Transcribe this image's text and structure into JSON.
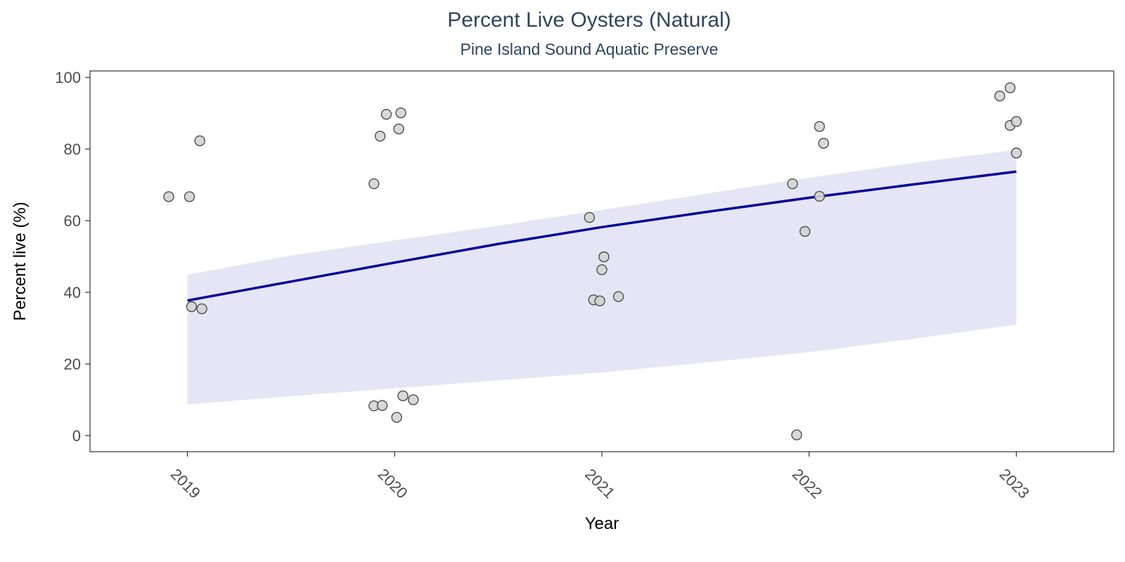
{
  "chart_data": {
    "type": "scatter",
    "title": "Percent Live Oysters (Natural)",
    "subtitle": "Pine Island Sound Aquatic Preserve",
    "xlabel": "Year",
    "ylabel": "Percent live (%)",
    "xlim": [
      2018.53,
      2023.47
    ],
    "ylim": [
      -4.5,
      101.8
    ],
    "x_ticks": [
      2019,
      2020,
      2021,
      2022,
      2023
    ],
    "y_ticks": [
      0,
      20,
      40,
      60,
      80,
      100
    ],
    "grid": false,
    "legend": "none",
    "colors": {
      "point_fill": "#d4d4d4",
      "point_fill_overlap": "#c9c8d9",
      "point_stroke": "#4d4d4d",
      "trend_line": "#000099",
      "confidence_band": "#e5e5f5",
      "panel_border": "#333333"
    },
    "points": [
      {
        "x": 2018.91,
        "y": 66.7
      },
      {
        "x": 2019.01,
        "y": 66.7
      },
      {
        "x": 2019.06,
        "y": 82.3
      },
      {
        "x": 2019.02,
        "y": 36.0
      },
      {
        "x": 2019.07,
        "y": 35.4
      },
      {
        "x": 2019.9,
        "y": 70.3
      },
      {
        "x": 2019.93,
        "y": 83.6
      },
      {
        "x": 2019.96,
        "y": 89.7
      },
      {
        "x": 2020.02,
        "y": 85.6
      },
      {
        "x": 2020.03,
        "y": 90.1
      },
      {
        "x": 2019.9,
        "y": 8.3
      },
      {
        "x": 2019.94,
        "y": 8.4
      },
      {
        "x": 2020.01,
        "y": 5.1
      },
      {
        "x": 2020.04,
        "y": 11.1
      },
      {
        "x": 2020.09,
        "y": 10.0
      },
      {
        "x": 2020.94,
        "y": 60.9
      },
      {
        "x": 2021.01,
        "y": 49.9
      },
      {
        "x": 2021.0,
        "y": 46.3
      },
      {
        "x": 2020.96,
        "y": 37.9
      },
      {
        "x": 2020.99,
        "y": 37.6
      },
      {
        "x": 2021.08,
        "y": 38.8
      },
      {
        "x": 2021.92,
        "y": 70.3
      },
      {
        "x": 2021.98,
        "y": 57.0
      },
      {
        "x": 2021.94,
        "y": 0.2
      },
      {
        "x": 2022.05,
        "y": 66.8
      },
      {
        "x": 2022.05,
        "y": 86.3
      },
      {
        "x": 2022.07,
        "y": 81.6
      },
      {
        "x": 2022.92,
        "y": 94.8
      },
      {
        "x": 2022.97,
        "y": 97.1
      },
      {
        "x": 2022.97,
        "y": 86.6
      },
      {
        "x": 2023.0,
        "y": 87.7
      },
      {
        "x": 2023.0,
        "y": 78.9
      }
    ],
    "trend": {
      "x": [
        2019.0,
        2019.5,
        2020.0,
        2020.5,
        2021.0,
        2021.5,
        2022.0,
        2022.5,
        2023.0
      ],
      "fit": [
        37.7,
        43.0,
        48.3,
        53.5,
        58.2,
        62.4,
        66.4,
        70.1,
        73.7
      ],
      "lower": [
        8.7,
        11.0,
        13.2,
        15.4,
        17.6,
        20.4,
        23.3,
        27.0,
        31.0
      ],
      "upper": [
        44.9,
        50.3,
        54.5,
        58.6,
        63.0,
        67.5,
        72.0,
        76.1,
        79.8
      ]
    }
  }
}
